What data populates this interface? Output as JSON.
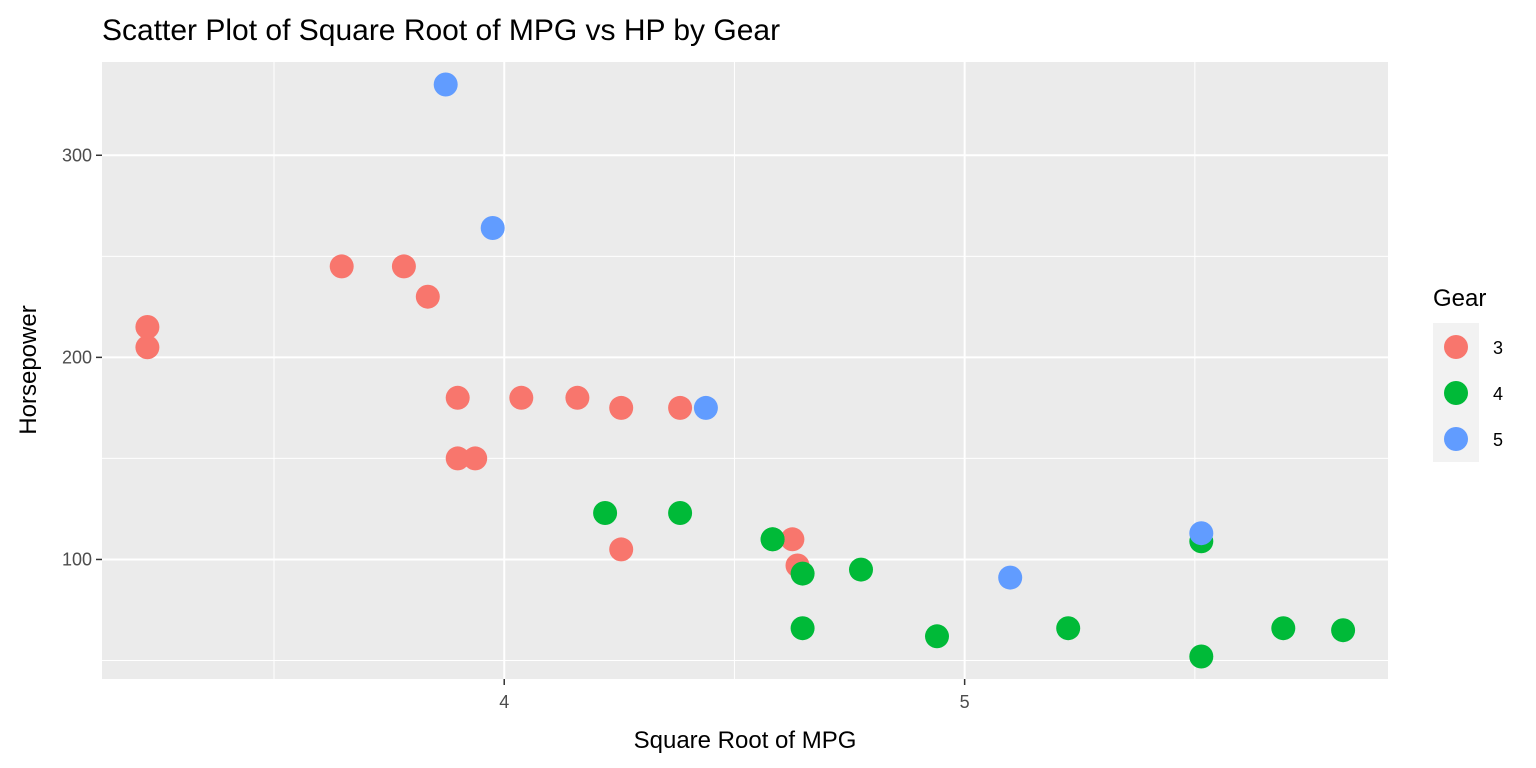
{
  "chart_data": {
    "type": "scatter",
    "title": "Scatter Plot of Square Root of MPG vs HP by Gear",
    "xlabel": "Square Root of MPG",
    "ylabel": "Horsepower",
    "xlim": [
      3.1264,
      5.9195
    ],
    "ylim": [
      40.85,
      346.15
    ],
    "x_ticks": [
      4,
      5
    ],
    "x_minor_ticks": [
      3.5,
      4.5,
      5.5
    ],
    "y_ticks": [
      100,
      200,
      300
    ],
    "y_minor_ticks": [
      50,
      150,
      250
    ],
    "grid": true,
    "legend": {
      "title": "Gear",
      "position": "right"
    },
    "series": [
      {
        "name": "3",
        "color": "#F8766D",
        "points": [
          [
            4.626,
            110
          ],
          [
            4.254,
            175
          ],
          [
            4.254,
            105
          ],
          [
            3.782,
            245
          ],
          [
            4.037,
            180
          ],
          [
            4.159,
            180
          ],
          [
            3.899,
            180
          ],
          [
            3.225,
            205
          ],
          [
            3.225,
            215
          ],
          [
            3.834,
            230
          ],
          [
            4.637,
            97
          ],
          [
            3.937,
            150
          ],
          [
            3.899,
            150
          ],
          [
            3.647,
            245
          ],
          [
            4.382,
            175
          ]
        ]
      },
      {
        "name": "4",
        "color": "#00BA38",
        "points": [
          [
            4.583,
            110
          ],
          [
            4.583,
            110
          ],
          [
            4.648,
            93
          ],
          [
            4.94,
            62
          ],
          [
            4.775,
            95
          ],
          [
            4.382,
            123
          ],
          [
            4.219,
            123
          ],
          [
            5.692,
            66
          ],
          [
            5.514,
            52
          ],
          [
            5.822,
            65
          ],
          [
            4.648,
            66
          ],
          [
            5.225,
            66
          ],
          [
            5.514,
            109
          ]
        ]
      },
      {
        "name": "5",
        "color": "#619CFF",
        "points": [
          [
            5.099,
            91
          ],
          [
            5.514,
            113
          ],
          [
            3.975,
            264
          ],
          [
            4.438,
            175
          ],
          [
            3.873,
            335
          ]
        ]
      }
    ]
  }
}
